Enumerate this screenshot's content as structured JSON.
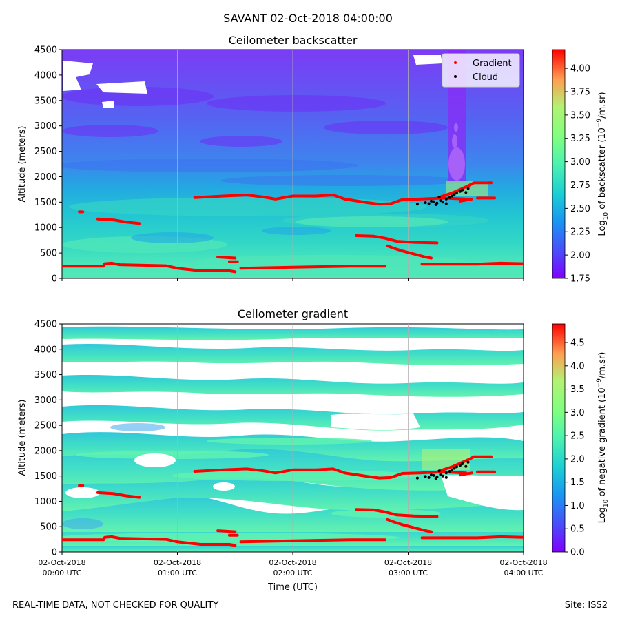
{
  "figure": {
    "title": "SAVANT 02-Oct-2018 04:00:00",
    "footer_left": "REAL-TIME DATA, NOT CHECKED FOR QUALITY",
    "footer_right": "Site: ISS2"
  },
  "colors": {
    "gradient_marker": "#ff0000",
    "cloud_marker": "#000000",
    "gridline": "#b0b0b0",
    "missing": "#ffffff"
  },
  "chart_data": [
    {
      "type": "heatmap",
      "title": "Ceilometer backscatter",
      "xlabel": "",
      "ylabel": "Altitude (meters)",
      "ylim": [
        0,
        4500
      ],
      "yticks": [
        0,
        500,
        1000,
        1500,
        2000,
        2500,
        3000,
        3500,
        4000,
        4500
      ],
      "xticks_hours": [
        0,
        1,
        2,
        3,
        4
      ],
      "xlim_hours": [
        0,
        4
      ],
      "grid": "x",
      "colorbar": {
        "label_prefix": "Log",
        "label_sub": "10",
        "label_mid": " of backscatter (10",
        "label_sup": "−9",
        "label_suffix": "/m.sr)",
        "range": [
          1.75,
          4.2
        ],
        "ticks": [
          "1.75",
          "2.00",
          "2.25",
          "2.50",
          "2.75",
          "3.00",
          "3.25",
          "3.50",
          "3.75",
          "4.00"
        ]
      },
      "legend": {
        "placement": "top-right",
        "entries": [
          {
            "label": "Gradient",
            "color": "#ff0000"
          },
          {
            "label": "Cloud",
            "color": "#000000"
          }
        ]
      }
    },
    {
      "type": "heatmap",
      "title": "Ceilometer gradient",
      "xlabel": "Time (UTC)",
      "ylabel": "Altitude (meters)",
      "ylim": [
        0,
        4500
      ],
      "yticks": [
        0,
        500,
        1000,
        1500,
        2000,
        2500,
        3000,
        3500,
        4000,
        4500
      ],
      "xticks_hours": [
        0,
        1,
        2,
        3,
        4
      ],
      "xticklabels": [
        [
          "02-Oct-2018",
          "00:00 UTC"
        ],
        [
          "02-Oct-2018",
          "01:00 UTC"
        ],
        [
          "02-Oct-2018",
          "02:00 UTC"
        ],
        [
          "02-Oct-2018",
          "03:00 UTC"
        ],
        [
          "02-Oct-2018",
          "04:00 UTC"
        ]
      ],
      "xlim_hours": [
        0,
        4
      ],
      "grid": "x",
      "colorbar": {
        "label_prefix": "Log",
        "label_sub": "10",
        "label_mid": " of negative gradient (10",
        "label_sup": "−9",
        "label_suffix": "/m.sr)",
        "range": [
          0,
          4.9
        ],
        "ticks": [
          "0.0",
          "0.5",
          "1.0",
          "1.5",
          "2.0",
          "2.5",
          "3.0",
          "3.5",
          "4.0",
          "4.5"
        ]
      }
    }
  ],
  "overlay": {
    "gradient_segments": [
      [
        [
          0.0,
          240
        ],
        [
          0.36,
          240
        ],
        [
          0.37,
          290
        ],
        [
          0.43,
          300
        ],
        [
          0.5,
          270
        ],
        [
          0.9,
          250
        ],
        [
          1.0,
          200
        ],
        [
          1.2,
          150
        ],
        [
          1.45,
          150
        ],
        [
          1.5,
          130
        ]
      ],
      [
        [
          1.55,
          200
        ],
        [
          2.0,
          220
        ],
        [
          2.5,
          240
        ],
        [
          2.8,
          240
        ]
      ],
      [
        [
          3.12,
          280
        ],
        [
          3.6,
          280
        ],
        [
          3.8,
          300
        ],
        [
          4.0,
          290
        ]
      ],
      [
        [
          1.35,
          420
        ],
        [
          1.5,
          400
        ]
      ],
      [
        [
          1.45,
          330
        ],
        [
          1.52,
          330
        ]
      ],
      [
        [
          0.15,
          1310
        ],
        [
          0.18,
          1310
        ]
      ],
      [
        [
          0.31,
          1170
        ],
        [
          0.45,
          1150
        ],
        [
          0.55,
          1110
        ],
        [
          0.67,
          1080
        ]
      ],
      [
        [
          1.15,
          1590
        ],
        [
          1.4,
          1620
        ],
        [
          1.6,
          1640
        ],
        [
          1.75,
          1600
        ],
        [
          1.85,
          1560
        ],
        [
          2.0,
          1620
        ],
        [
          2.2,
          1620
        ],
        [
          2.35,
          1640
        ],
        [
          2.45,
          1560
        ],
        [
          2.65,
          1490
        ],
        [
          2.75,
          1460
        ],
        [
          2.85,
          1470
        ],
        [
          2.95,
          1550
        ],
        [
          3.1,
          1560
        ],
        [
          3.3,
          1580
        ],
        [
          3.5,
          1560
        ]
      ],
      [
        [
          2.55,
          840
        ],
        [
          2.7,
          830
        ],
        [
          2.8,
          790
        ],
        [
          2.9,
          730
        ],
        [
          3.05,
          710
        ],
        [
          3.25,
          700
        ]
      ],
      [
        [
          2.82,
          640
        ],
        [
          2.88,
          590
        ],
        [
          2.95,
          540
        ],
        [
          3.05,
          480
        ],
        [
          3.15,
          420
        ],
        [
          3.2,
          400
        ]
      ],
      [
        [
          3.45,
          1520
        ],
        [
          3.55,
          1560
        ]
      ],
      [
        [
          3.6,
          1580
        ],
        [
          3.75,
          1580
        ]
      ],
      [
        [
          3.25,
          1580
        ],
        [
          3.3,
          1620
        ],
        [
          3.38,
          1680
        ],
        [
          3.45,
          1750
        ],
        [
          3.52,
          1820
        ],
        [
          3.57,
          1880
        ],
        [
          3.72,
          1880
        ]
      ]
    ],
    "cloud_points": [
      [
        3.08,
        1460
      ],
      [
        3.15,
        1490
      ],
      [
        3.18,
        1470
      ],
      [
        3.22,
        1510
      ],
      [
        3.25,
        1480
      ],
      [
        3.28,
        1530
      ],
      [
        3.3,
        1500
      ],
      [
        3.33,
        1560
      ],
      [
        3.36,
        1590
      ],
      [
        3.38,
        1620
      ],
      [
        3.4,
        1650
      ],
      [
        3.42,
        1680
      ],
      [
        3.45,
        1710
      ],
      [
        3.47,
        1740
      ],
      [
        3.5,
        1690
      ],
      [
        3.52,
        1770
      ],
      [
        3.33,
        1470
      ],
      [
        3.24,
        1450
      ],
      [
        3.2,
        1520
      ],
      [
        3.27,
        1600
      ]
    ]
  }
}
